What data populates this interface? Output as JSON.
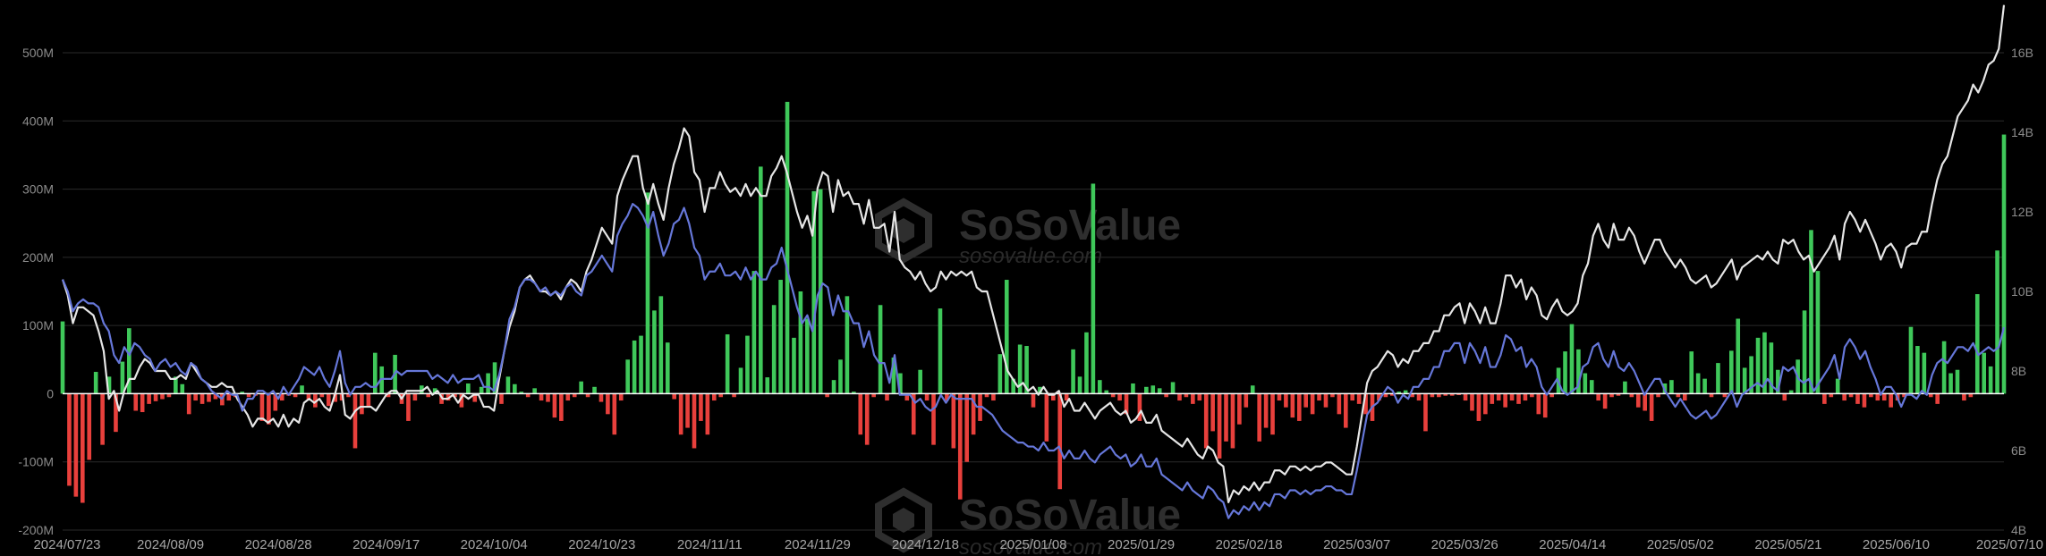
{
  "watermark": {
    "brand": "SoSoValue",
    "url": "sosovalue.com"
  },
  "chart_data": {
    "type": "bar",
    "title": "",
    "grid": true,
    "left_axis": {
      "ylim": [
        -200,
        500
      ],
      "ticks": [
        -200,
        -100,
        0,
        100,
        200,
        300,
        400,
        500
      ],
      "tick_labels": [
        "-200M",
        "-100M",
        "0",
        "100M",
        "200M",
        "300M",
        "400M",
        "500M"
      ]
    },
    "right_axis": {
      "ylim": [
        4,
        16
      ],
      "ticks": [
        4,
        6,
        8,
        10,
        12,
        14,
        16
      ],
      "tick_labels": [
        "4B",
        "6B",
        "8B",
        "10B",
        "12B",
        "14B",
        "16B"
      ]
    },
    "x_tick_labels": [
      "2024/07/23",
      "2024/08/09",
      "2024/08/28",
      "2024/09/17",
      "2024/10/04",
      "2024/10/23",
      "2024/11/11",
      "2024/11/29",
      "2024/12/18",
      "2025/01/08",
      "2025/01/29",
      "2025/02/18",
      "2025/03/07",
      "2025/03/26",
      "2025/04/14",
      "2025/05/02",
      "2025/05/21",
      "2025/06/10",
      "2025/07/10"
    ],
    "colors": {
      "positive": "#3fc85a",
      "negative": "#e8403c",
      "white_line": "#e6e6e6",
      "blue_line": "#6677d9",
      "grid": "#2a2a2a",
      "zero_line": "#ffffff"
    },
    "series": [
      {
        "type": "bar",
        "axis": "left",
        "values": [
          106,
          -135,
          -151,
          -160,
          -97,
          32,
          -75,
          25,
          -56,
          47,
          96,
          -25,
          -27,
          -15,
          -11,
          -8,
          -5,
          25,
          14,
          -30,
          -10,
          -15,
          -12,
          -8,
          -17,
          -10,
          -5,
          3,
          -5,
          -3,
          -40,
          -45,
          -25,
          -10,
          -3,
          -5,
          12,
          -8,
          -20,
          -5,
          -18,
          -12,
          -10,
          -5,
          -80,
          -30,
          -20,
          60,
          40,
          -5,
          57,
          -15,
          -40,
          -10,
          12,
          -5,
          8,
          -15,
          -10,
          -5,
          -20,
          15,
          -12,
          10,
          30,
          46,
          -15,
          25,
          14,
          3,
          -5,
          8,
          -10,
          -12,
          -35,
          -40,
          -10,
          -5,
          18,
          -5,
          10,
          -12,
          -30,
          -60,
          -10,
          50,
          78,
          85,
          295,
          122,
          143,
          75,
          -8,
          -60,
          -50,
          -80,
          -40,
          -60,
          -10,
          -5,
          87,
          -5,
          38,
          85,
          180,
          333,
          24,
          130,
          167,
          428,
          82,
          150,
          110,
          297,
          300,
          -5,
          20,
          50,
          143,
          3,
          -60,
          -75,
          -5,
          130,
          -10,
          53,
          30,
          -10,
          -60,
          35,
          -10,
          -75,
          125,
          -10,
          -80,
          -155,
          -100,
          -60,
          -40,
          -5,
          -10,
          58,
          167,
          22,
          72,
          70,
          -20,
          10,
          -70,
          -10,
          -140,
          -10,
          65,
          25,
          90,
          308,
          20,
          5,
          -5,
          -10,
          -30,
          15,
          -40,
          10,
          12,
          8,
          -5,
          17,
          -10,
          -5,
          -15,
          -10,
          -80,
          -55,
          -95,
          -70,
          -80,
          -45,
          -20,
          12,
          -70,
          -50,
          -60,
          -10,
          -20,
          -35,
          -40,
          -20,
          -30,
          -10,
          -20,
          -5,
          -30,
          -50,
          -10,
          -15,
          -30,
          -40,
          -10,
          -5,
          -3,
          3,
          5,
          -5,
          -10,
          -55,
          -5,
          -5,
          -3,
          -3,
          -2,
          -10,
          -25,
          -40,
          -30,
          -15,
          -10,
          -20,
          -10,
          -15,
          -10,
          -5,
          -30,
          -35,
          -5,
          38,
          62,
          102,
          65,
          30,
          20,
          -10,
          -22,
          -5,
          -3,
          18,
          -5,
          -20,
          -25,
          -40,
          -5,
          15,
          20,
          -5,
          -10,
          62,
          30,
          22,
          -5,
          45,
          -5,
          63,
          110,
          38,
          55,
          82,
          90,
          75,
          35,
          -10,
          5,
          50,
          122,
          240,
          180,
          -15,
          -5,
          22,
          -10,
          -5,
          -15,
          -20,
          -5,
          -10,
          -10,
          -20,
          -10,
          -5,
          98,
          70,
          60,
          -5,
          -15,
          77,
          30,
          35,
          -10,
          -5,
          146,
          60,
          40,
          210,
          380
        ]
      },
      {
        "type": "line",
        "axis": "right",
        "color": "white",
        "values": [
          10.3,
          9.9,
          9.2,
          9.6,
          9.6,
          9.5,
          9.4,
          9.0,
          8.5,
          7.3,
          7.5,
          7.0,
          7.5,
          7.8,
          7.8,
          8.1,
          8.3,
          8.2,
          8.0,
          8.0,
          8.0,
          7.8,
          7.8,
          7.9,
          7.8,
          8.2,
          8.0,
          7.8,
          7.7,
          7.6,
          7.6,
          7.7,
          7.6,
          7.6,
          7.3,
          7.1,
          6.9,
          6.6,
          6.8,
          6.8,
          6.7,
          6.8,
          6.6,
          6.9,
          6.6,
          6.8,
          6.7,
          7.2,
          7.3,
          7.2,
          7.3,
          7.1,
          7.0,
          7.4,
          7.9,
          6.9,
          6.8,
          7.0,
          7.1,
          7.1,
          7.1,
          7.0,
          7.2,
          7.4,
          7.5,
          7.5,
          7.3,
          7.5,
          7.5,
          7.5,
          7.5,
          7.6,
          7.4,
          7.5,
          7.3,
          7.3,
          7.4,
          7.2,
          7.4,
          7.3,
          7.4,
          7.4,
          7.1,
          7.1,
          7.0,
          7.8,
          8.5,
          9.1,
          9.5,
          10.1,
          10.3,
          10.4,
          10.2,
          10.0,
          10.0,
          9.9,
          10.0,
          9.8,
          10.1,
          10.3,
          10.2,
          10.0,
          10.5,
          10.8,
          11.2,
          11.6,
          11.4,
          11.2,
          12.4,
          12.8,
          13.1,
          13.4,
          13.4,
          12.6,
          12.2,
          12.7,
          12.2,
          11.8,
          12.6,
          13.2,
          13.6,
          14.1,
          13.9,
          13.0,
          12.8,
          12.0,
          12.6,
          12.6,
          13.0,
          12.7,
          12.5,
          12.6,
          12.4,
          12.7,
          12.4,
          12.6,
          12.4,
          12.4,
          12.9,
          13.1,
          13.4,
          13.0,
          12.5,
          12.0,
          11.6,
          11.9,
          11.4,
          12.6,
          13.0,
          12.9,
          12.0,
          12.8,
          12.4,
          12.5,
          12.2,
          12.2,
          11.7,
          12.3,
          11.6,
          11.6,
          11.7,
          11.0,
          12.0,
          10.8,
          10.6,
          10.5,
          10.3,
          10.5,
          10.2,
          10.0,
          10.1,
          10.5,
          10.3,
          10.5,
          10.4,
          10.5,
          10.4,
          10.5,
          10.1,
          10.0,
          10.0,
          9.5,
          9.0,
          8.5,
          8.0,
          7.8,
          7.6,
          7.7,
          7.5,
          7.6,
          7.4,
          7.6,
          7.4,
          7.4,
          7.5,
          7.1,
          7.3,
          7.0,
          7.0,
          7.2,
          7.0,
          6.8,
          7.0,
          7.1,
          7.2,
          7.0,
          6.9,
          7.0,
          6.7,
          6.8,
          7.0,
          6.7,
          6.7,
          6.9,
          6.5,
          6.4,
          6.3,
          6.2,
          6.1,
          6.3,
          6.1,
          5.9,
          5.8,
          6.1,
          6.0,
          5.7,
          5.6,
          4.7,
          5.0,
          4.9,
          5.1,
          5.0,
          5.2,
          5.0,
          5.2,
          5.2,
          5.5,
          5.5,
          5.4,
          5.6,
          5.6,
          5.5,
          5.6,
          5.5,
          5.6,
          5.6,
          5.7,
          5.7,
          5.6,
          5.5,
          5.4,
          5.4,
          6.1,
          6.9,
          7.7,
          8.0,
          8.1,
          8.3,
          8.5,
          8.4,
          8.1,
          8.3,
          8.2,
          8.5,
          8.5,
          8.7,
          8.7,
          9.0,
          9.0,
          9.4,
          9.4,
          9.6,
          9.7,
          9.2,
          9.7,
          9.5,
          9.2,
          9.6,
          9.2,
          9.2,
          9.7,
          10.4,
          10.4,
          10.1,
          10.3,
          9.8,
          10.1,
          9.9,
          9.4,
          9.3,
          9.6,
          9.8,
          9.5,
          9.4,
          9.5,
          9.7,
          10.4,
          10.7,
          11.4,
          11.7,
          11.3,
          11.1,
          11.7,
          11.3,
          11.3,
          11.6,
          11.4,
          11.0,
          10.7,
          11.0,
          11.3,
          11.3,
          11.0,
          10.8,
          10.6,
          10.8,
          10.6,
          10.3,
          10.2,
          10.3,
          10.4,
          10.1,
          10.2,
          10.4,
          10.6,
          10.8,
          10.3,
          10.6,
          10.7,
          10.8,
          10.9,
          10.8,
          11.0,
          10.8,
          10.7,
          11.3,
          11.2,
          11.3,
          11.0,
          10.8,
          10.9,
          10.5,
          10.7,
          10.9,
          11.1,
          11.4,
          10.8,
          11.7,
          12.0,
          11.8,
          11.5,
          11.8,
          11.5,
          11.2,
          10.8,
          11.1,
          11.2,
          11.0,
          10.6,
          11.1,
          11.2,
          11.2,
          11.5,
          11.5,
          12.2,
          12.8,
          13.2,
          13.4,
          13.9,
          14.4,
          14.6,
          14.8,
          15.2,
          15.0,
          15.3,
          15.7,
          15.8,
          16.1,
          17.2
        ]
      },
      {
        "type": "line",
        "axis": "right",
        "color": "blue",
        "values": [
          10.3,
          10.0,
          9.5,
          9.7,
          9.8,
          9.7,
          9.7,
          9.6,
          9.2,
          9.0,
          8.4,
          8.2,
          8.6,
          8.4,
          8.7,
          8.6,
          8.4,
          8.3,
          8.0,
          8.2,
          8.3,
          8.1,
          8.2,
          8.0,
          7.9,
          8.2,
          8.1,
          7.8,
          7.7,
          7.5,
          7.4,
          7.3,
          7.5,
          7.4,
          7.4,
          7.0,
          7.3,
          7.3,
          7.5,
          7.5,
          7.4,
          7.5,
          7.3,
          7.6,
          7.4,
          7.6,
          7.8,
          8.1,
          8.0,
          7.9,
          8.1,
          7.8,
          7.6,
          8.0,
          8.5,
          7.7,
          7.4,
          7.6,
          7.6,
          7.7,
          7.6,
          7.6,
          7.8,
          7.8,
          7.8,
          8.0,
          7.9,
          8.0,
          8.0,
          8.0,
          8.0,
          8.0,
          7.8,
          7.9,
          7.8,
          7.7,
          7.9,
          7.7,
          7.8,
          7.8,
          7.8,
          7.9,
          7.6,
          7.6,
          7.5,
          7.9,
          8.5,
          9.3,
          9.6,
          10.1,
          10.3,
          10.3,
          10.2,
          10.0,
          10.1,
          9.9,
          10.0,
          9.9,
          10.1,
          10.2,
          10.0,
          9.9,
          10.4,
          10.5,
          10.7,
          10.9,
          10.7,
          10.5,
          11.4,
          11.7,
          11.9,
          12.2,
          12.1,
          11.9,
          11.6,
          12.0,
          11.4,
          10.9,
          11.2,
          11.7,
          11.8,
          12.1,
          11.7,
          11.1,
          10.9,
          10.3,
          10.5,
          10.5,
          10.7,
          10.4,
          10.4,
          10.5,
          10.3,
          10.6,
          10.3,
          10.5,
          10.3,
          10.3,
          10.6,
          10.7,
          11.1,
          10.6,
          10.1,
          9.6,
          9.2,
          9.4,
          9.0,
          9.9,
          10.2,
          10.1,
          9.4,
          9.9,
          9.5,
          9.5,
          9.2,
          9.2,
          8.6,
          9.0,
          8.4,
          8.2,
          8.2,
          7.7,
          8.4,
          7.4,
          7.4,
          7.4,
          7.2,
          7.3,
          7.1,
          7.0,
          7.1,
          7.4,
          7.2,
          7.4,
          7.3,
          7.3,
          7.3,
          7.3,
          7.1,
          7.1,
          7.0,
          6.9,
          6.7,
          6.5,
          6.4,
          6.3,
          6.2,
          6.2,
          6.1,
          6.1,
          6.0,
          6.2,
          6.0,
          6.0,
          6.1,
          5.8,
          6.0,
          5.8,
          5.8,
          6.0,
          5.8,
          5.7,
          5.9,
          6.0,
          6.1,
          5.9,
          5.8,
          5.9,
          5.6,
          5.7,
          5.9,
          5.6,
          5.6,
          5.8,
          5.4,
          5.3,
          5.2,
          5.1,
          5.0,
          5.2,
          5.0,
          4.9,
          4.8,
          5.1,
          5.0,
          4.8,
          4.7,
          4.3,
          4.5,
          4.4,
          4.6,
          4.5,
          4.7,
          4.5,
          4.7,
          4.6,
          4.9,
          4.9,
          4.8,
          5.0,
          5.0,
          4.9,
          5.0,
          4.9,
          5.0,
          5.0,
          5.1,
          5.1,
          5.0,
          5.0,
          4.9,
          4.9,
          5.5,
          6.2,
          6.9,
          7.1,
          7.2,
          7.4,
          7.6,
          7.5,
          7.2,
          7.4,
          7.3,
          7.6,
          7.6,
          7.8,
          7.8,
          8.1,
          8.1,
          8.5,
          8.5,
          8.7,
          8.7,
          8.2,
          8.7,
          8.5,
          8.2,
          8.6,
          8.1,
          8.1,
          8.4,
          8.9,
          8.8,
          8.5,
          8.6,
          8.1,
          8.3,
          8.1,
          7.6,
          7.4,
          7.6,
          7.8,
          7.5,
          7.4,
          7.5,
          7.6,
          8.1,
          8.2,
          8.6,
          8.7,
          8.3,
          8.1,
          8.5,
          8.1,
          8.0,
          8.2,
          8.0,
          7.7,
          7.4,
          7.6,
          7.8,
          7.8,
          7.5,
          7.3,
          7.1,
          7.3,
          7.1,
          6.9,
          6.8,
          6.9,
          7.0,
          6.8,
          6.9,
          7.1,
          7.3,
          7.5,
          7.1,
          7.4,
          7.5,
          7.6,
          7.7,
          7.6,
          7.8,
          7.6,
          7.5,
          8.1,
          8.0,
          8.1,
          7.8,
          7.7,
          7.8,
          7.5,
          7.7,
          7.9,
          8.1,
          8.4,
          7.8,
          8.6,
          8.8,
          8.6,
          8.3,
          8.5,
          8.1,
          7.8,
          7.4,
          7.6,
          7.6,
          7.4,
          7.1,
          7.4,
          7.4,
          7.3,
          7.5,
          7.4,
          7.9,
          8.2,
          8.3,
          8.2,
          8.4,
          8.6,
          8.6,
          8.5,
          8.7,
          8.4,
          8.5,
          8.6,
          8.5,
          8.6,
          9.1
        ]
      }
    ]
  }
}
